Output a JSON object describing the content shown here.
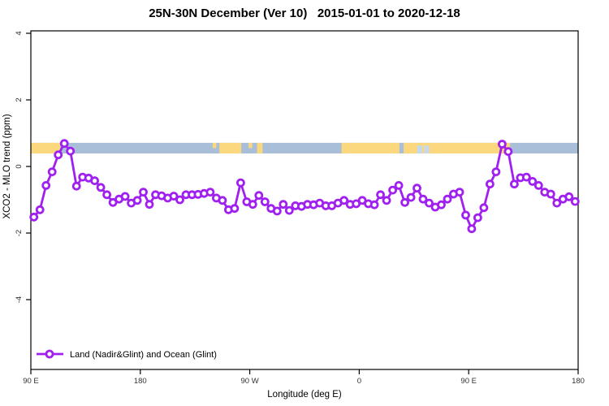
{
  "chart_data": {
    "type": "line",
    "title": "25N-30N December (Ver 10)   2015-01-01 to 2020-12-18",
    "xlabel": "Longitude (deg E)",
    "ylabel": "XCO2 - MLO trend (ppm)",
    "x_ticks": [
      {
        "label": "90 E",
        "lon": 90
      },
      {
        "label": "180",
        "lon": 180
      },
      {
        "label": "90 W",
        "lon": 270
      },
      {
        "label": "0",
        "lon": 360
      },
      {
        "label": "90 E",
        "lon": 450
      },
      {
        "label": "180",
        "lon": 540
      }
    ],
    "y_ticks": [
      {
        "label": "4",
        "value": 4
      },
      {
        "label": "2",
        "value": 2
      },
      {
        "label": "0",
        "value": 0
      },
      {
        "label": "-2",
        "value": -2
      },
      {
        "label": "-4",
        "value": -4
      }
    ],
    "x_range_deg_continuous": [
      90,
      540
    ],
    "y_tick_range": [
      -4,
      4
    ],
    "grid": "off",
    "legend": {
      "label": "Land (Nadir&Glint) and Ocean (Glint)",
      "position": "bottom-left"
    },
    "colors": {
      "series": "#A020F0",
      "marker_fill": "#FFFFFF",
      "land": "#FBD87E",
      "ocean": "#A9BFD9",
      "shallow_sea": "#C6D8EA",
      "axis": "#000000"
    },
    "map_band": {
      "note": "world-map strip for 25N-30N band drawn at ~0.4-0.7 ppm",
      "value_top": 0.71,
      "value_bottom": 0.39,
      "land_segments_deg": [
        [
          90,
          114
        ],
        [
          245,
          263
        ],
        [
          276,
          280.5
        ],
        [
          345.5,
          393
        ],
        [
          396.5,
          484
        ]
      ],
      "shallow_patches_deg": [
        [
          407.5,
          412
        ],
        [
          413.5,
          417.5
        ]
      ],
      "small_land_specks_deg": [
        [
          239.5,
          242.5
        ],
        [
          269,
          272
        ]
      ]
    },
    "series": [
      {
        "name": "Land (Nadir&Glint) and Ocean (Glint)",
        "marker": "open-circle",
        "points": [
          [
            92.5,
            -1.52
          ],
          [
            97.5,
            -1.3
          ],
          [
            102.5,
            -0.57
          ],
          [
            107.5,
            -0.16
          ],
          [
            112.5,
            0.35
          ],
          [
            117.5,
            0.69
          ],
          [
            122.5,
            0.46
          ],
          [
            127.5,
            -0.59
          ],
          [
            132.5,
            -0.32
          ],
          [
            137.5,
            -0.35
          ],
          [
            142.5,
            -0.43
          ],
          [
            147.5,
            -0.63
          ],
          [
            152.5,
            -0.85
          ],
          [
            157.5,
            -1.08
          ],
          [
            162.5,
            -0.98
          ],
          [
            167.5,
            -0.9
          ],
          [
            172.5,
            -1.1
          ],
          [
            177.5,
            -1.02
          ],
          [
            182.5,
            -0.77
          ],
          [
            187.5,
            -1.14
          ],
          [
            192.5,
            -0.85
          ],
          [
            197.5,
            -0.88
          ],
          [
            202.5,
            -0.95
          ],
          [
            207.5,
            -0.89
          ],
          [
            212.5,
            -1.0
          ],
          [
            217.5,
            -0.85
          ],
          [
            222.5,
            -0.85
          ],
          [
            227.5,
            -0.84
          ],
          [
            232.5,
            -0.81
          ],
          [
            237.5,
            -0.77
          ],
          [
            242.5,
            -0.95
          ],
          [
            247.5,
            -1.02
          ],
          [
            252.5,
            -1.3
          ],
          [
            257.5,
            -1.26
          ],
          [
            262.5,
            -0.49
          ],
          [
            267.5,
            -1.06
          ],
          [
            272.5,
            -1.14
          ],
          [
            277.5,
            -0.87
          ],
          [
            282.5,
            -1.06
          ],
          [
            287.5,
            -1.26
          ],
          [
            292.5,
            -1.34
          ],
          [
            297.5,
            -1.14
          ],
          [
            302.5,
            -1.32
          ],
          [
            307.5,
            -1.18
          ],
          [
            312.5,
            -1.2
          ],
          [
            317.5,
            -1.14
          ],
          [
            322.5,
            -1.15
          ],
          [
            327.5,
            -1.1
          ],
          [
            332.5,
            -1.18
          ],
          [
            337.5,
            -1.18
          ],
          [
            342.5,
            -1.1
          ],
          [
            347.5,
            -1.02
          ],
          [
            352.5,
            -1.14
          ],
          [
            357.5,
            -1.12
          ],
          [
            362.5,
            -1.02
          ],
          [
            367.5,
            -1.12
          ],
          [
            372.5,
            -1.15
          ],
          [
            377.5,
            -0.85
          ],
          [
            382.5,
            -1.02
          ],
          [
            387.5,
            -0.71
          ],
          [
            392.5,
            -0.57
          ],
          [
            397.5,
            -1.08
          ],
          [
            402.5,
            -0.93
          ],
          [
            407.5,
            -0.65
          ],
          [
            412.5,
            -0.98
          ],
          [
            417.5,
            -1.1
          ],
          [
            422.5,
            -1.22
          ],
          [
            427.5,
            -1.15
          ],
          [
            432.5,
            -0.98
          ],
          [
            437.5,
            -0.83
          ],
          [
            442.5,
            -0.77
          ],
          [
            447.5,
            -1.46
          ],
          [
            452.5,
            -1.87
          ],
          [
            457.5,
            -1.54
          ],
          [
            462.5,
            -1.24
          ],
          [
            467.5,
            -0.53
          ],
          [
            472.5,
            -0.16
          ],
          [
            477.5,
            0.67
          ],
          [
            482.5,
            0.45
          ],
          [
            487.5,
            -0.53
          ],
          [
            492.5,
            -0.34
          ],
          [
            497.5,
            -0.32
          ],
          [
            502.5,
            -0.45
          ],
          [
            507.5,
            -0.57
          ],
          [
            512.5,
            -0.77
          ],
          [
            517.5,
            -0.83
          ],
          [
            522.5,
            -1.1
          ],
          [
            527.5,
            -0.98
          ],
          [
            532.5,
            -0.91
          ],
          [
            537.5,
            -1.05
          ]
        ]
      }
    ]
  }
}
